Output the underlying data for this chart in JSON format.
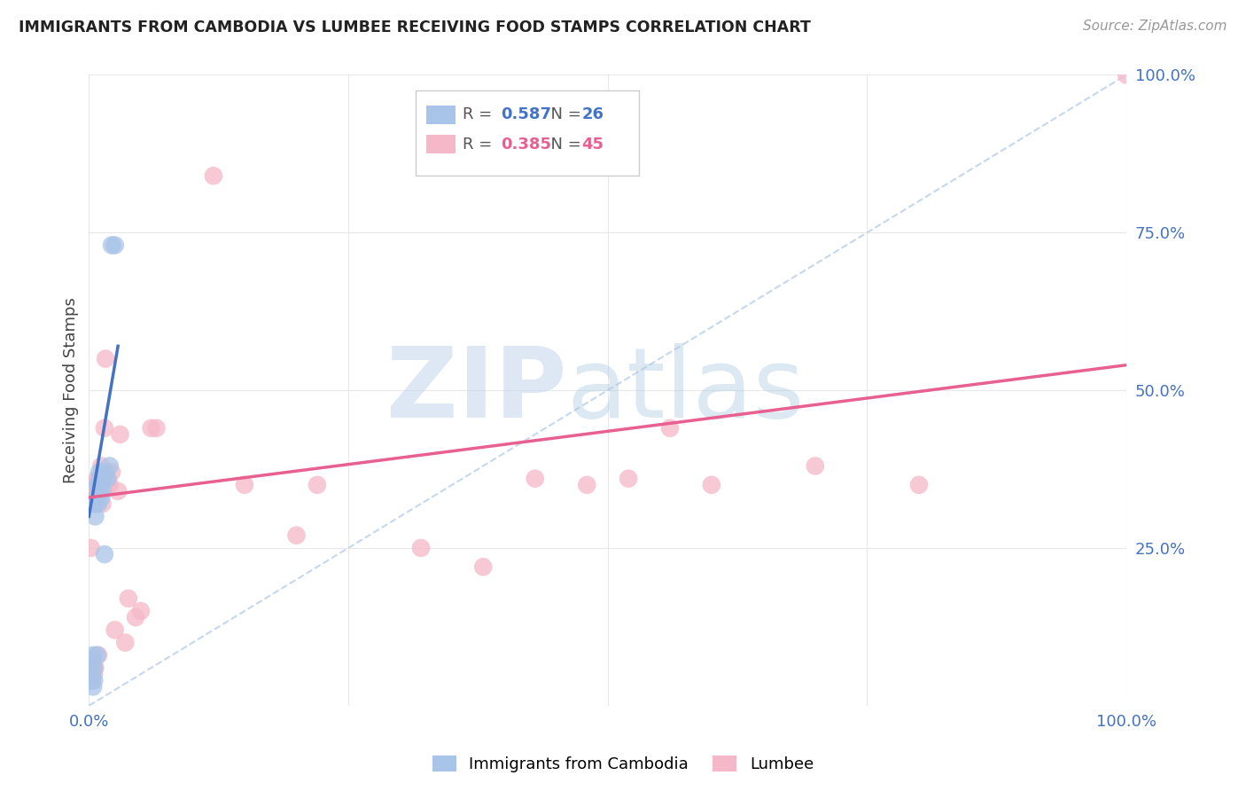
{
  "title": "IMMIGRANTS FROM CAMBODIA VS LUMBEE RECEIVING FOOD STAMPS CORRELATION CHART",
  "source": "Source: ZipAtlas.com",
  "ylabel": "Receiving Food Stamps",
  "xlim": [
    0,
    1.0
  ],
  "ylim": [
    0,
    1.0
  ],
  "ytick_vals": [
    0,
    0.25,
    0.5,
    0.75,
    1.0
  ],
  "ytick_labels": [
    "",
    "25.0%",
    "50.0%",
    "75.0%",
    "100.0%"
  ],
  "xtick_vals": [
    0,
    1.0
  ],
  "xtick_labels": [
    "0.0%",
    "100.0%"
  ],
  "blue_R": "0.587",
  "blue_N": "26",
  "pink_R": "0.385",
  "pink_N": "45",
  "blue_color": "#a8c4e8",
  "pink_color": "#f5b8c8",
  "blue_line_color": "#4472c4",
  "pink_line_color": "#e86090",
  "diagonal_color": "#c5d8ee",
  "background_color": "#ffffff",
  "grid_color": "#e8e8e8",
  "blue_points_x": [
    0.002,
    0.003,
    0.003,
    0.004,
    0.004,
    0.005,
    0.005,
    0.006,
    0.006,
    0.007,
    0.008,
    0.008,
    0.009,
    0.01,
    0.01,
    0.011,
    0.012,
    0.012,
    0.013,
    0.014,
    0.015,
    0.016,
    0.018,
    0.02,
    0.022,
    0.025
  ],
  "blue_points_y": [
    0.04,
    0.05,
    0.07,
    0.03,
    0.08,
    0.04,
    0.06,
    0.32,
    0.3,
    0.33,
    0.35,
    0.08,
    0.32,
    0.35,
    0.37,
    0.35,
    0.33,
    0.36,
    0.34,
    0.36,
    0.24,
    0.37,
    0.36,
    0.38,
    0.73,
    0.73
  ],
  "pink_points_x": [
    0.002,
    0.003,
    0.003,
    0.004,
    0.005,
    0.005,
    0.006,
    0.006,
    0.007,
    0.008,
    0.008,
    0.009,
    0.01,
    0.011,
    0.012,
    0.013,
    0.015,
    0.016,
    0.017,
    0.018,
    0.02,
    0.022,
    0.025,
    0.028,
    0.03,
    0.035,
    0.038,
    0.045,
    0.05,
    0.06,
    0.065,
    0.12,
    0.15,
    0.2,
    0.22,
    0.32,
    0.38,
    0.43,
    0.48,
    0.52,
    0.56,
    0.6,
    0.7,
    0.8,
    1.0
  ],
  "pink_points_y": [
    0.25,
    0.04,
    0.35,
    0.06,
    0.33,
    0.05,
    0.32,
    0.06,
    0.33,
    0.33,
    0.36,
    0.08,
    0.36,
    0.35,
    0.38,
    0.32,
    0.44,
    0.55,
    0.35,
    0.36,
    0.35,
    0.37,
    0.12,
    0.34,
    0.43,
    0.1,
    0.17,
    0.14,
    0.15,
    0.44,
    0.44,
    0.84,
    0.35,
    0.27,
    0.35,
    0.25,
    0.22,
    0.36,
    0.35,
    0.36,
    0.44,
    0.35,
    0.38,
    0.35,
    1.0
  ],
  "blue_line_x": [
    0.0,
    0.028
  ],
  "blue_line_y": [
    0.3,
    0.57
  ],
  "pink_line_x": [
    0.0,
    1.0
  ],
  "pink_line_y": [
    0.33,
    0.54
  ]
}
